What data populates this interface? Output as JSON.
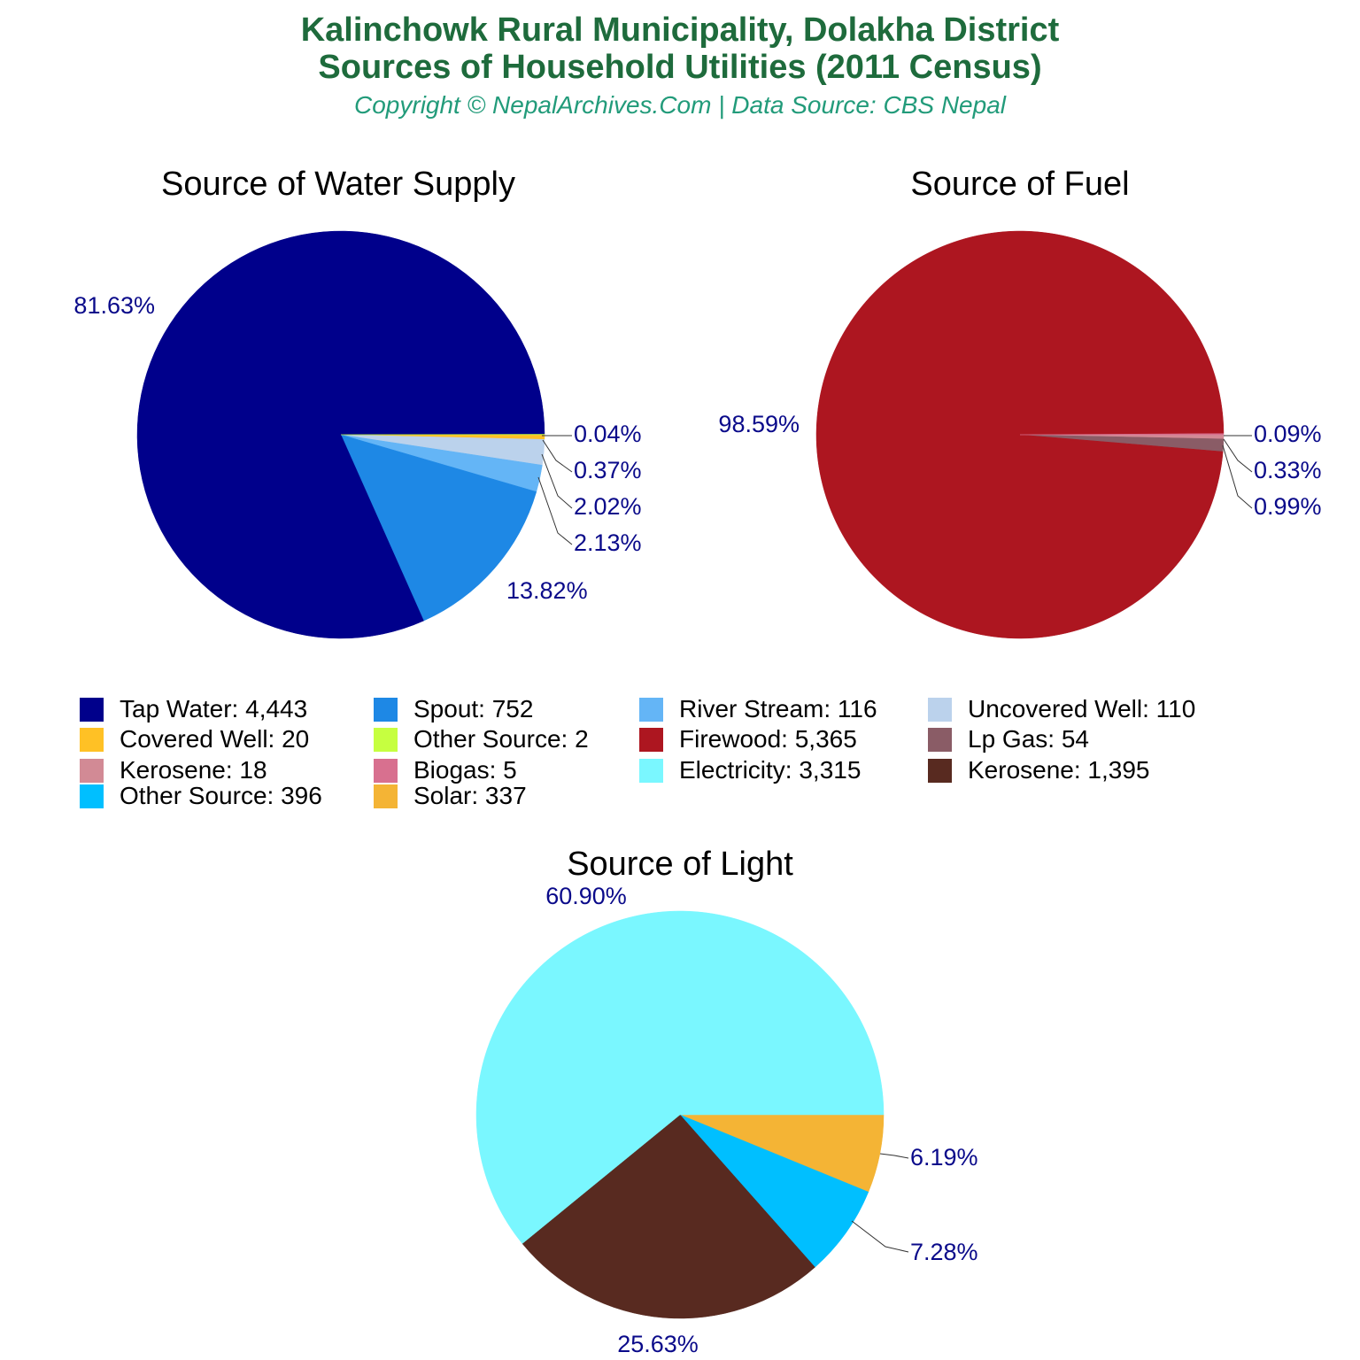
{
  "header": {
    "title_line1": "Kalinchowk Rural Municipality, Dolakha District",
    "title_line2": "Sources of Household Utilities (2011 Census)",
    "subtitle": "Copyright © NepalArchives.Com | Data Source: CBS Nepal"
  },
  "legend": [
    {
      "text": "Tap Water: 4,443",
      "color": "#00008b"
    },
    {
      "text": "Spout: 752",
      "color": "#1e88e5"
    },
    {
      "text": "River Stream: 116",
      "color": "#64b5f6"
    },
    {
      "text": "Uncovered Well: 110",
      "color": "#bbd2ec"
    },
    {
      "text": "Covered Well: 20",
      "color": "#ffc125"
    },
    {
      "text": "Other Source: 2",
      "color": "#c6ff40"
    },
    {
      "text": "Firewood: 5,365",
      "color": "#ad1620"
    },
    {
      "text": "Lp Gas: 54",
      "color": "#8a5c66"
    },
    {
      "text": "Kerosene: 18",
      "color": "#d28a95"
    },
    {
      "text": "Biogas: 5",
      "color": "#d8708f"
    },
    {
      "text": "Electricity: 3,315",
      "color": "#7af7ff"
    },
    {
      "text": "Kerosene: 1,395",
      "color": "#582a20"
    },
    {
      "text": "Other Source: 396",
      "color": "#00bfff"
    },
    {
      "text": "Solar: 337",
      "color": "#f4b435"
    }
  ],
  "chart_data": [
    {
      "type": "pie",
      "title": "Source of Water Supply",
      "slices": [
        {
          "label": "Covered Well",
          "value": 20,
          "pct": "0.37%",
          "color": "#ffc125"
        },
        {
          "label": "Uncovered Well",
          "value": 110,
          "pct": "2.02%",
          "color": "#bbd2ec"
        },
        {
          "label": "River Stream",
          "value": 116,
          "pct": "2.13%",
          "color": "#64b5f6"
        },
        {
          "label": "Spout",
          "value": 752,
          "pct": "13.82%",
          "color": "#1e88e5"
        },
        {
          "label": "Tap Water",
          "value": 4443,
          "pct": "81.63%",
          "color": "#00008b"
        },
        {
          "label": "Other Source",
          "value": 2,
          "pct": "0.04%",
          "color": "#c6ff40"
        }
      ]
    },
    {
      "type": "pie",
      "title": "Source of Fuel",
      "slices": [
        {
          "label": "Kerosene",
          "value": 18,
          "pct": "0.33%",
          "color": "#d28a95"
        },
        {
          "label": "Lp Gas",
          "value": 54,
          "pct": "0.99%",
          "color": "#8a5c66"
        },
        {
          "label": "Firewood",
          "value": 5365,
          "pct": "98.59%",
          "color": "#ad1620"
        },
        {
          "label": "Biogas",
          "value": 5,
          "pct": "0.09%",
          "color": "#d8708f"
        }
      ]
    },
    {
      "type": "pie",
      "title": "Source of Light",
      "slices": [
        {
          "label": "Solar",
          "value": 337,
          "pct": "6.19%",
          "color": "#f4b435"
        },
        {
          "label": "Other Source",
          "value": 396,
          "pct": "7.28%",
          "color": "#00bfff"
        },
        {
          "label": "Kerosene",
          "value": 1395,
          "pct": "25.63%",
          "color": "#582a20"
        },
        {
          "label": "Electricity",
          "value": 3315,
          "pct": "60.90%",
          "color": "#7af7ff"
        }
      ]
    }
  ]
}
